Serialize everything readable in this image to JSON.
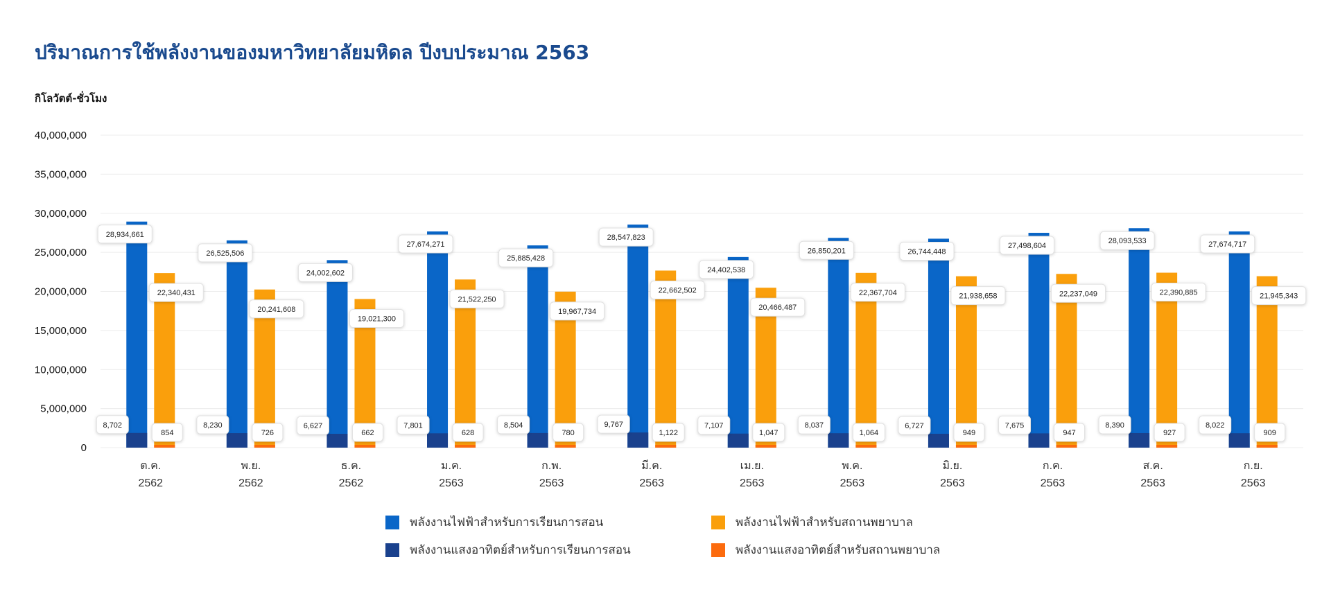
{
  "chart_data": {
    "type": "bar",
    "title": "ปริมาณการใช้พลังงานของมหาวิทยาลัยมหิดล ปีงบประมาณ 2563",
    "ylabel": "กิโลวัตต์-ชั่วโมง",
    "ylim": [
      0,
      40000000
    ],
    "yticks": [
      0,
      5000000,
      10000000,
      15000000,
      20000000,
      25000000,
      30000000,
      35000000,
      40000000
    ],
    "ytick_labels": [
      "0",
      "5,000,000",
      "10,000,000",
      "15,000,000",
      "20,000,000",
      "25,000,000",
      "30,000,000",
      "35,000,000",
      "40,000,000"
    ],
    "grid": true,
    "categories": [
      {
        "month": "ต.ค.",
        "year": "2562"
      },
      {
        "month": "พ.ย.",
        "year": "2562"
      },
      {
        "month": "ธ.ค.",
        "year": "2562"
      },
      {
        "month": "ม.ค.",
        "year": "2563"
      },
      {
        "month": "ก.พ.",
        "year": "2563"
      },
      {
        "month": "มี.ค.",
        "year": "2563"
      },
      {
        "month": "เม.ย.",
        "year": "2563"
      },
      {
        "month": "พ.ค.",
        "year": "2563"
      },
      {
        "month": "มิ.ย.",
        "year": "2563"
      },
      {
        "month": "ก.ค.",
        "year": "2563"
      },
      {
        "month": "ส.ค.",
        "year": "2563"
      },
      {
        "month": "ก.ย.",
        "year": "2563"
      }
    ],
    "series": [
      {
        "name": "พลังงานไฟฟ้าสำหรับการเรียนการสอน",
        "stack": "teaching",
        "color": "#0a66c8",
        "values": [
          28934661,
          26525506,
          24002602,
          27674271,
          25885428,
          28547823,
          24402538,
          26850201,
          26744448,
          27498604,
          28093533,
          27674717
        ],
        "labels": [
          "28,934,661",
          "26,525,506",
          "24,002,602",
          "27,674,271",
          "25,885,428",
          "28,547,823",
          "24,402,538",
          "26,850,201",
          "26,744,448",
          "27,498,604",
          "28,093,533",
          "27,674,717"
        ]
      },
      {
        "name": "พลังงานไฟฟ้าสำหรับสถานพยาบาล",
        "stack": "hospital",
        "color": "#fa9f0c",
        "values": [
          22340431,
          20241608,
          19021300,
          21522250,
          19967734,
          22662502,
          20466487,
          22367704,
          21938658,
          22237049,
          22390885,
          21945343
        ],
        "labels": [
          "22,340,431",
          "20,241,608",
          "19,021,300",
          "21,522,250",
          "19,967,734",
          "22,662,502",
          "20,466,487",
          "22,367,704",
          "21,938,658",
          "22,237,049",
          "22,390,885",
          "21,945,343"
        ]
      },
      {
        "name": "พลังงานแสงอาทิตย์สำหรับการเรียนการสอน",
        "stack": "teaching",
        "color": "#1a418d",
        "values": [
          8702,
          8230,
          6627,
          7801,
          8504,
          9767,
          7107,
          8037,
          6727,
          7675,
          8390,
          8022
        ],
        "labels": [
          "8,702",
          "8,230",
          "6,627",
          "7,801",
          "8,504",
          "9,767",
          "7,107",
          "8,037",
          "6,727",
          "7,675",
          "8,390",
          "8,022"
        ]
      },
      {
        "name": "พลังงานแสงอาทิตย์สำหรับสถานพยาบาล",
        "stack": "hospital",
        "color": "#fc6b0e",
        "values": [
          854,
          726,
          662,
          628,
          780,
          1122,
          1047,
          1064,
          949,
          947,
          927,
          909
        ],
        "labels": [
          "854",
          "726",
          "662",
          "628",
          "780",
          "1,122",
          "1,047",
          "1,064",
          "949",
          "947",
          "927",
          "909"
        ]
      }
    ],
    "legend_position": "bottom-center"
  }
}
